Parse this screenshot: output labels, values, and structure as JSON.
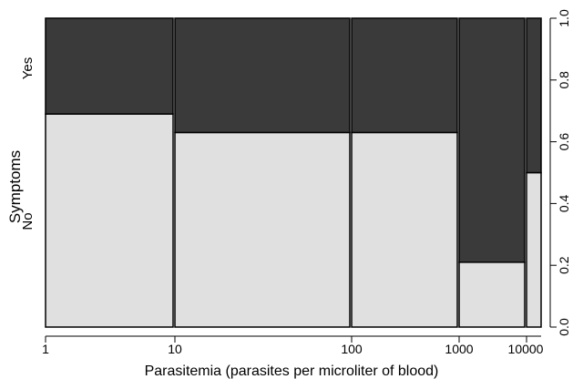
{
  "chart_data": {
    "type": "spineplot",
    "xlabel": "Parasitemia (parasites per microliter of blood)",
    "ylabel": "Symptoms",
    "x_tick_labels": [
      "1",
      "10",
      "100",
      "1000",
      "10000"
    ],
    "y_category_labels": [
      "No",
      "Yes"
    ],
    "y_right_ticks": [
      "0.0",
      "0.2",
      "0.4",
      "0.6",
      "0.8",
      "1.0"
    ],
    "ylim": [
      0,
      1
    ],
    "colors": {
      "No": "#e0e0e0",
      "Yes": "#3a3a3a",
      "border": "#000000"
    },
    "bins": [
      {
        "from": "1",
        "to": "10",
        "No": 0.69,
        "Yes": 0.31
      },
      {
        "from": "10",
        "to": "100",
        "No": 0.63,
        "Yes": 0.37
      },
      {
        "from": "100",
        "to": "1000",
        "No": 0.63,
        "Yes": 0.37
      },
      {
        "from": "1000",
        "to": "10000",
        "No": 0.21,
        "Yes": 0.79
      },
      {
        "from": "10000",
        "to": "10000",
        "No": 0.5,
        "Yes": 0.5
      }
    ]
  }
}
